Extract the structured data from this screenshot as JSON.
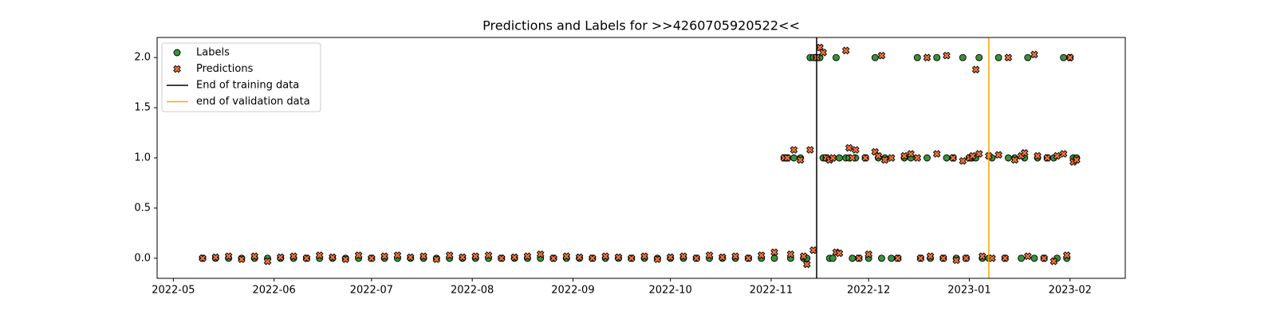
{
  "chart_data": {
    "type": "scatter",
    "title": "Predictions and Labels for >>4260705920522<<",
    "x": [
      "2022-05-10",
      "2022-05-14",
      "2022-05-18",
      "2022-05-22",
      "2022-05-26",
      "2022-05-30",
      "2022-06-03",
      "2022-06-07",
      "2022-06-11",
      "2022-06-15",
      "2022-06-19",
      "2022-06-23",
      "2022-06-27",
      "2022-07-01",
      "2022-07-05",
      "2022-07-09",
      "2022-07-13",
      "2022-07-17",
      "2022-07-21",
      "2022-07-25",
      "2022-07-29",
      "2022-08-02",
      "2022-08-06",
      "2022-08-10",
      "2022-08-14",
      "2022-08-18",
      "2022-08-22",
      "2022-08-26",
      "2022-08-30",
      "2022-09-03",
      "2022-09-07",
      "2022-09-11",
      "2022-09-15",
      "2022-09-19",
      "2022-09-23",
      "2022-09-27",
      "2022-10-01",
      "2022-10-05",
      "2022-10-09",
      "2022-10-13",
      "2022-10-17",
      "2022-10-21",
      "2022-10-25",
      "2022-10-29",
      "2022-11-02",
      "2022-11-05",
      "2022-11-06",
      "2022-11-07",
      "2022-11-08",
      "2022-11-10",
      "2022-11-11",
      "2022-11-12",
      "2022-11-13",
      "2022-11-14",
      "2022-11-15",
      "2022-11-16",
      "2022-11-17",
      "2022-11-18",
      "2022-11-19",
      "2022-11-20",
      "2022-11-21",
      "2022-11-22",
      "2022-11-24",
      "2022-11-25",
      "2022-11-26",
      "2022-11-27",
      "2022-11-28",
      "2022-11-30",
      "2022-12-01",
      "2022-12-03",
      "2022-12-04",
      "2022-12-05",
      "2022-12-06",
      "2022-12-08",
      "2022-12-10",
      "2022-12-12",
      "2022-12-14",
      "2022-12-16",
      "2022-12-17",
      "2022-12-19",
      "2022-12-20",
      "2022-12-22",
      "2022-12-24",
      "2022-12-25",
      "2022-12-27",
      "2022-12-28",
      "2022-12-30",
      "2022-12-31",
      "2023-01-01",
      "2023-01-02",
      "2023-01-03",
      "2023-01-04",
      "2023-01-05",
      "2023-01-07",
      "2023-01-08",
      "2023-01-10",
      "2023-01-12",
      "2023-01-13",
      "2023-01-15",
      "2023-01-17",
      "2023-01-18",
      "2023-01-19",
      "2023-01-21",
      "2023-01-22",
      "2023-01-24",
      "2023-01-25",
      "2023-01-27",
      "2023-01-28",
      "2023-01-30",
      "2023-01-31",
      "2023-02-01",
      "2023-02-02",
      "2023-02-03"
    ],
    "series": [
      {
        "name": "Labels",
        "color": "#3a923a",
        "marker": "o",
        "values": [
          0,
          0,
          0,
          0,
          0,
          0,
          0,
          0,
          0,
          0,
          0,
          0,
          0,
          0,
          0,
          0,
          0,
          0,
          0,
          0,
          0,
          0,
          0,
          0,
          0,
          0,
          0,
          0,
          0,
          0,
          0,
          0,
          0,
          0,
          0,
          0,
          0,
          0,
          0,
          0,
          0,
          0,
          0,
          0,
          0,
          1,
          1,
          0,
          1,
          1,
          0,
          0,
          2,
          2,
          2,
          2,
          1,
          1,
          0,
          0,
          2,
          1,
          1,
          1,
          0,
          1,
          0,
          1,
          0,
          2,
          1,
          0,
          1,
          0,
          0,
          1,
          1,
          2,
          0,
          1,
          0,
          2,
          0,
          1,
          1,
          0,
          2,
          0,
          1,
          1,
          1,
          2,
          0,
          0,
          1,
          2,
          0,
          1,
          1,
          0,
          1,
          2,
          0,
          1,
          0,
          1,
          1,
          0,
          2,
          0,
          2,
          1,
          1
        ]
      },
      {
        "name": "Predictions",
        "color": "#f07238",
        "marker": "X",
        "values": [
          0.0,
          0.01,
          0.02,
          -0.01,
          0.02,
          -0.03,
          0.01,
          0.02,
          0.0,
          0.03,
          0.01,
          -0.01,
          0.03,
          0.0,
          0.02,
          0.03,
          0.01,
          0.02,
          -0.01,
          0.03,
          0.01,
          0.02,
          0.03,
          0.0,
          0.01,
          0.02,
          0.04,
          0.0,
          0.02,
          0.01,
          0.0,
          0.02,
          0.01,
          0.0,
          0.02,
          -0.01,
          0.01,
          0.02,
          0.0,
          0.03,
          0.01,
          0.02,
          0.0,
          0.03,
          0.06,
          1,
          1,
          0.04,
          1.08,
          0.98,
          0.02,
          -0.06,
          1.08,
          0.08,
          2.0,
          2.1,
          2.05,
          1.0,
          0.98,
          1.0,
          0.06,
          0.05,
          2.07,
          1.1,
          1.0,
          1.08,
          0.0,
          1.0,
          0.04,
          1.06,
          1.02,
          2.02,
          0.98,
          1.0,
          0.0,
          1.02,
          1.04,
          1.0,
          0.0,
          2.0,
          0.02,
          1.04,
          0.0,
          2.02,
          1.0,
          -0.02,
          0.97,
          0.0,
          1.0,
          1.02,
          1.88,
          1.04,
          0.02,
          1.02,
          0.0,
          1.03,
          0.0,
          2.0,
          0.98,
          1.02,
          1.05,
          0.02,
          2.03,
          1.02,
          0.0,
          1.0,
          -0.03,
          1.02,
          1.04,
          0.03,
          2.0,
          0.96,
          0.98
        ]
      }
    ],
    "vlines": [
      {
        "name": "End of training data",
        "x": "2022-11-15",
        "color": "#000000"
      },
      {
        "name": "end of validation data",
        "x": "2023-01-07",
        "color": "#ffa500"
      }
    ],
    "xlim": [
      "2022-04-26",
      "2023-02-18"
    ],
    "xticks": [
      {
        "value": "2022-05-01",
        "label": "2022-05"
      },
      {
        "value": "2022-06-01",
        "label": "2022-06"
      },
      {
        "value": "2022-07-01",
        "label": "2022-07"
      },
      {
        "value": "2022-08-01",
        "label": "2022-08"
      },
      {
        "value": "2022-09-01",
        "label": "2022-09"
      },
      {
        "value": "2022-10-01",
        "label": "2022-10"
      },
      {
        "value": "2022-11-01",
        "label": "2022-11"
      },
      {
        "value": "2022-12-01",
        "label": "2022-12"
      },
      {
        "value": "2023-01-01",
        "label": "2023-01"
      },
      {
        "value": "2023-02-01",
        "label": "2023-02"
      }
    ],
    "ylim": [
      -0.2,
      2.2
    ],
    "yticks": [
      {
        "value": 0,
        "label": "0.0"
      },
      {
        "value": 0.5,
        "label": "0.5"
      },
      {
        "value": 1,
        "label": "1.0"
      },
      {
        "value": 1.5,
        "label": "1.5"
      },
      {
        "value": 2,
        "label": "2.0"
      }
    ],
    "legend": "upper left"
  }
}
